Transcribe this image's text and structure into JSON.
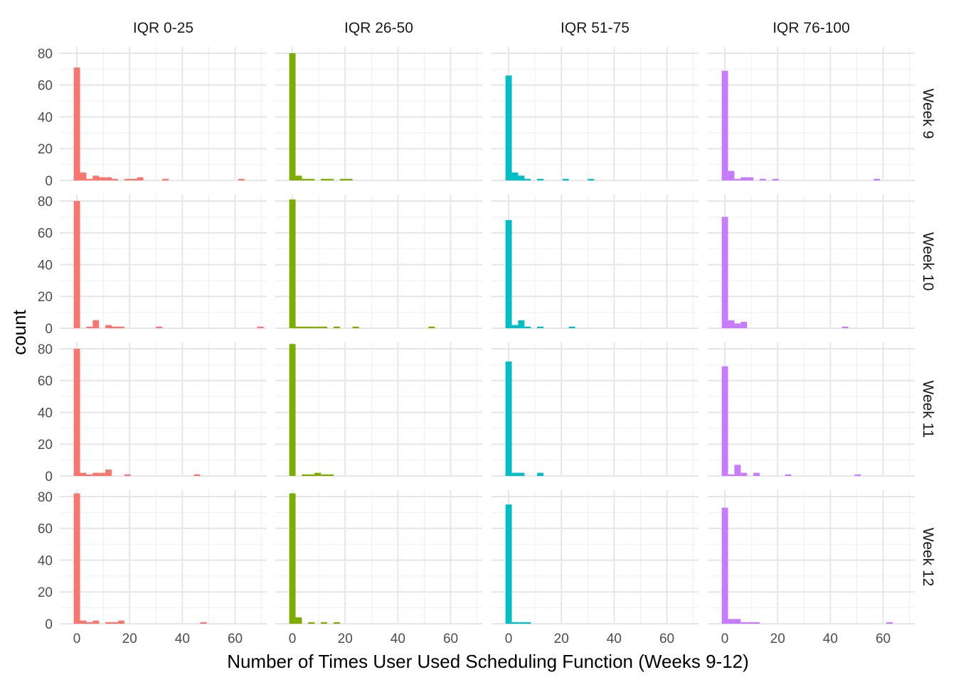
{
  "chart_data": {
    "type": "bar",
    "chart_kind": "faceted-histogram",
    "xlabel": "Number of Times User Used Scheduling Function (Weeks 9-12)",
    "ylabel": "count",
    "xlim": [
      -6.5,
      72
    ],
    "ylim": [
      0,
      84
    ],
    "x_ticks": [
      0,
      20,
      40,
      60
    ],
    "y_ticks": [
      0,
      20,
      40,
      60,
      80
    ],
    "grid": true,
    "legend": "none",
    "bin_width": 2.4,
    "columns": [
      {
        "label": "IQR 0-25",
        "color": "#F8766D"
      },
      {
        "label": "IQR 26-50",
        "color": "#7CAE00"
      },
      {
        "label": "IQR 51-75",
        "color": "#00BFC4"
      },
      {
        "label": "IQR 76-100",
        "color": "#C77CFF"
      }
    ],
    "rows": [
      {
        "label": "Week 9"
      },
      {
        "label": "Week 10"
      },
      {
        "label": "Week 11"
      },
      {
        "label": "Week 12"
      }
    ],
    "panels": [
      {
        "row": 0,
        "col": 0,
        "bins": [
          [
            0,
            71
          ],
          [
            2.4,
            5
          ],
          [
            4.8,
            1
          ],
          [
            7.2,
            3
          ],
          [
            9.6,
            2
          ],
          [
            12,
            2
          ],
          [
            14.4,
            1
          ],
          [
            19.2,
            1
          ],
          [
            21.6,
            1
          ],
          [
            24,
            2
          ],
          [
            33.6,
            1
          ],
          [
            62.4,
            1
          ]
        ]
      },
      {
        "row": 0,
        "col": 1,
        "bins": [
          [
            0,
            80
          ],
          [
            2.4,
            3
          ],
          [
            4.8,
            1
          ],
          [
            7.2,
            1
          ],
          [
            12,
            1
          ],
          [
            14.4,
            1
          ],
          [
            19.2,
            1
          ],
          [
            21.6,
            1
          ]
        ]
      },
      {
        "row": 0,
        "col": 2,
        "bins": [
          [
            0,
            66
          ],
          [
            2.4,
            5
          ],
          [
            4.8,
            3
          ],
          [
            7.2,
            1
          ],
          [
            12,
            1
          ],
          [
            21.6,
            1
          ],
          [
            31.2,
            1
          ]
        ]
      },
      {
        "row": 0,
        "col": 3,
        "bins": [
          [
            0,
            69
          ],
          [
            2.4,
            6
          ],
          [
            4.8,
            1
          ],
          [
            7.2,
            2
          ],
          [
            9.6,
            2
          ],
          [
            14.4,
            1
          ],
          [
            19.2,
            1
          ],
          [
            57.6,
            1
          ]
        ]
      },
      {
        "row": 1,
        "col": 0,
        "bins": [
          [
            0,
            80
          ],
          [
            4.8,
            1
          ],
          [
            7.2,
            5
          ],
          [
            9.6,
            0
          ],
          [
            12,
            2
          ],
          [
            14.4,
            1
          ],
          [
            16.8,
            1
          ],
          [
            31.2,
            1
          ],
          [
            69.6,
            1
          ]
        ]
      },
      {
        "row": 1,
        "col": 1,
        "bins": [
          [
            0,
            81
          ],
          [
            2.4,
            1
          ],
          [
            4.8,
            1
          ],
          [
            7.2,
            1
          ],
          [
            9.6,
            1
          ],
          [
            12,
            1
          ],
          [
            16.8,
            1
          ],
          [
            24,
            1
          ],
          [
            52.8,
            1
          ]
        ]
      },
      {
        "row": 1,
        "col": 2,
        "bins": [
          [
            0,
            68
          ],
          [
            2.4,
            2
          ],
          [
            4.8,
            5
          ],
          [
            7.2,
            1
          ],
          [
            12,
            1
          ],
          [
            24,
            1
          ]
        ]
      },
      {
        "row": 1,
        "col": 3,
        "bins": [
          [
            0,
            70
          ],
          [
            2.4,
            5
          ],
          [
            4.8,
            3
          ],
          [
            7.2,
            4
          ],
          [
            45.6,
            1
          ]
        ]
      },
      {
        "row": 2,
        "col": 0,
        "bins": [
          [
            0,
            80
          ],
          [
            2.4,
            2
          ],
          [
            4.8,
            1
          ],
          [
            7.2,
            2
          ],
          [
            9.6,
            2
          ],
          [
            12,
            4
          ],
          [
            19.2,
            1
          ],
          [
            45.6,
            1
          ]
        ]
      },
      {
        "row": 2,
        "col": 1,
        "bins": [
          [
            0,
            83
          ],
          [
            4.8,
            1
          ],
          [
            7.2,
            1
          ],
          [
            9.6,
            2
          ],
          [
            12,
            1
          ],
          [
            14.4,
            1
          ]
        ]
      },
      {
        "row": 2,
        "col": 2,
        "bins": [
          [
            0,
            72
          ],
          [
            2.4,
            2
          ],
          [
            4.8,
            2
          ],
          [
            12,
            2
          ]
        ]
      },
      {
        "row": 2,
        "col": 3,
        "bins": [
          [
            0,
            69
          ],
          [
            2.4,
            1
          ],
          [
            4.8,
            7
          ],
          [
            7.2,
            2
          ],
          [
            12,
            2
          ],
          [
            24,
            1
          ],
          [
            50.4,
            1
          ]
        ]
      },
      {
        "row": 3,
        "col": 0,
        "bins": [
          [
            0,
            82
          ],
          [
            2.4,
            2
          ],
          [
            4.8,
            1
          ],
          [
            7.2,
            2
          ],
          [
            12,
            1
          ],
          [
            14.4,
            1
          ],
          [
            16.8,
            2
          ],
          [
            48,
            1
          ]
        ]
      },
      {
        "row": 3,
        "col": 1,
        "bins": [
          [
            0,
            82
          ],
          [
            2.4,
            4
          ],
          [
            7.2,
            1
          ],
          [
            12,
            1
          ],
          [
            16.8,
            1
          ]
        ]
      },
      {
        "row": 3,
        "col": 2,
        "bins": [
          [
            0,
            75
          ],
          [
            2.4,
            1
          ],
          [
            4.8,
            1
          ],
          [
            7.2,
            1
          ]
        ]
      },
      {
        "row": 3,
        "col": 3,
        "bins": [
          [
            0,
            73
          ],
          [
            2.4,
            3
          ],
          [
            4.8,
            3
          ],
          [
            7.2,
            1
          ],
          [
            9.6,
            1
          ],
          [
            12,
            1
          ],
          [
            62.4,
            1
          ]
        ]
      }
    ]
  }
}
